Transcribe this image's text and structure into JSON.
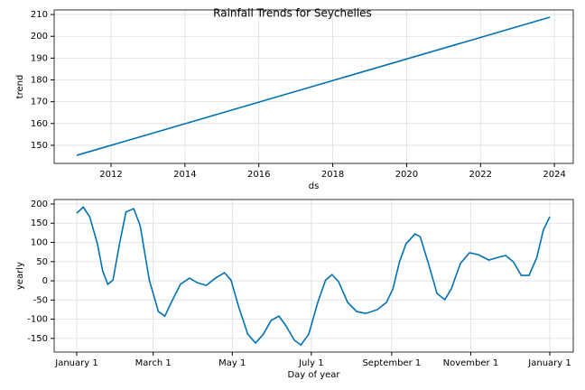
{
  "chart_data": [
    {
      "type": "line",
      "title": "Rainfall Trends for Seychelles",
      "xlabel": "ds",
      "ylabel": "trend",
      "x": [
        2011.07,
        2023.88
      ],
      "series": [
        {
          "name": "trend",
          "color": "#0072B2",
          "values": [
            145.4,
            208.8
          ]
        }
      ],
      "xlim": [
        2010.46,
        2024.51
      ],
      "xticks": [
        2012,
        2014,
        2016,
        2018,
        2020,
        2022,
        2024
      ],
      "ylim": [
        141.7,
        212.1
      ],
      "yticks": [
        150,
        160,
        170,
        180,
        190,
        200,
        210
      ],
      "grid": true
    },
    {
      "type": "line",
      "xlabel": "Day of year",
      "ylabel": "yearly",
      "x": [
        0,
        5,
        10,
        16,
        20,
        24,
        28,
        33,
        38,
        44,
        49,
        56,
        63,
        68,
        73,
        80,
        87,
        93,
        100,
        107,
        114,
        119,
        125,
        132,
        138,
        144,
        150,
        156,
        161,
        168,
        173,
        179,
        186,
        192,
        197,
        202,
        209,
        216,
        223,
        232,
        239,
        244,
        249,
        254,
        261,
        265,
        271,
        278,
        284,
        289,
        296,
        303,
        310,
        318,
        325,
        331,
        337,
        343,
        349,
        355,
        360,
        365
      ],
      "series": [
        {
          "name": "yearly",
          "color": "#0072B2",
          "values": [
            176,
            192,
            167,
            96,
            26,
            -9,
            2,
            96,
            179,
            188,
            143,
            2,
            -80,
            -92,
            -56,
            -9,
            7,
            -5,
            -12,
            7,
            21,
            2,
            -68,
            -139,
            -162,
            -139,
            -103,
            -92,
            -115,
            -155,
            -167,
            -139,
            -56,
            2,
            16,
            -2,
            -56,
            -80,
            -85,
            -75,
            -56,
            -21,
            49,
            96,
            122,
            115,
            49,
            -33,
            -49,
            -21,
            45,
            73,
            68,
            54,
            61,
            66,
            49,
            14,
            14,
            61,
            132,
            167
          ]
        }
      ],
      "xlim": [
        -17.4,
        383.1
      ],
      "xticks": [
        {
          "value": 0,
          "label": "January 1"
        },
        {
          "value": 59,
          "label": "March 1"
        },
        {
          "value": 120,
          "label": "May 1"
        },
        {
          "value": 181,
          "label": "July 1"
        },
        {
          "value": 243,
          "label": "September 1"
        },
        {
          "value": 304,
          "label": "November 1"
        },
        {
          "value": 365,
          "label": "January 1"
        }
      ],
      "ylim": [
        -185.6,
        211.7
      ],
      "yticks": [
        -150,
        -100,
        -50,
        0,
        50,
        100,
        150,
        200
      ],
      "grid": true
    }
  ]
}
